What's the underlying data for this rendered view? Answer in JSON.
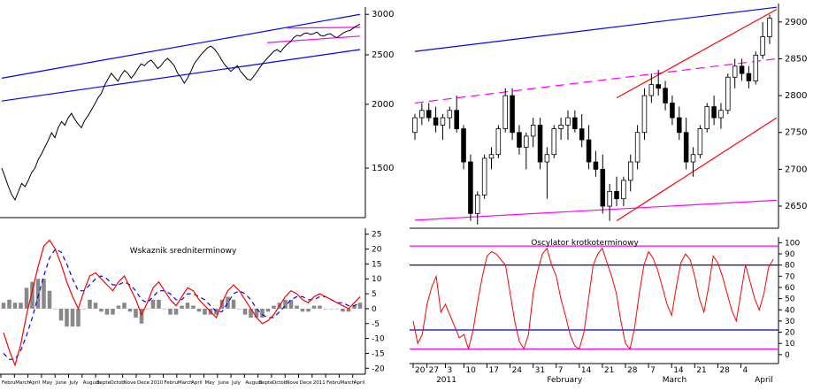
{
  "chart_data": [
    {
      "type": "line",
      "panel": "long-term-price",
      "title": "",
      "ylim": [
        1200,
        3100
      ],
      "log_scale": true,
      "y_ticks": [
        {
          "value": 3000,
          "label": "3000"
        },
        {
          "value": 2500,
          "label": "2500"
        },
        {
          "value": 2000,
          "label": "2000"
        },
        {
          "value": 1500,
          "label": "1500"
        }
      ],
      "series": [
        {
          "values": [
            1500,
            1440,
            1380,
            1330,
            1300,
            1350,
            1400,
            1380,
            1420,
            1470,
            1500,
            1560,
            1600,
            1650,
            1700,
            1760,
            1720,
            1800,
            1850,
            1820,
            1880,
            1920,
            1870,
            1830,
            1800,
            1860,
            1900,
            1950,
            2000,
            2060,
            2100,
            2180,
            2240,
            2300,
            2260,
            2220,
            2280,
            2330,
            2300,
            2250,
            2290,
            2350,
            2400,
            2380,
            2420,
            2440,
            2400,
            2350,
            2380,
            2430,
            2460,
            2420,
            2380,
            2300,
            2260,
            2200,
            2250,
            2320,
            2400,
            2450,
            2500,
            2540,
            2580,
            2600,
            2570,
            2520,
            2460,
            2400,
            2360,
            2320,
            2350,
            2380,
            2320,
            2280,
            2240,
            2230,
            2270,
            2320,
            2370,
            2420,
            2460,
            2500,
            2540,
            2560,
            2530,
            2580,
            2620,
            2650,
            2700,
            2730,
            2720,
            2750,
            2760,
            2740,
            2750,
            2770,
            2730,
            2720,
            2740,
            2750,
            2720,
            2700,
            2730,
            2760,
            2780,
            2790,
            2820,
            2850,
            2870
          ]
        }
      ],
      "trendlines": [
        {
          "color": "#0000ff",
          "points": [
            [
              0,
              2250
            ],
            [
              108,
              3000
            ]
          ]
        },
        {
          "color": "#0000ff",
          "points": [
            [
              0,
              2030
            ],
            [
              108,
              2560
            ]
          ]
        },
        {
          "color": "#ff00ff",
          "points": [
            [
              80,
              2640
            ],
            [
              108,
              2720
            ]
          ]
        },
        {
          "color": "#ff00ff",
          "points": [
            [
              86,
              2820
            ],
            [
              108,
              2830
            ]
          ]
        }
      ],
      "x_labels": []
    },
    {
      "type": "line",
      "panel": "medium-term-oscillator",
      "title": "Wskaznik sredniterminowy",
      "ylim": [
        -22,
        27
      ],
      "y_ticks": [
        25,
        20,
        15,
        10,
        5,
        0,
        -5,
        -10,
        -15,
        -20
      ],
      "series": [
        {
          "color": "#ff0000",
          "values": [
            -8,
            -14,
            -19,
            -12,
            -2,
            6,
            14,
            21,
            23,
            20,
            15,
            9,
            4,
            0,
            6,
            11,
            12,
            10,
            8,
            6,
            9,
            11,
            7,
            3,
            -2,
            2,
            7,
            9,
            6,
            3,
            1,
            4,
            7,
            6,
            3,
            1,
            -1,
            -3,
            2,
            6,
            8,
            6,
            3,
            0,
            -3,
            -5,
            -4,
            -2,
            1,
            4,
            6,
            5,
            3,
            2,
            4,
            5,
            4,
            3,
            2,
            1,
            0,
            2,
            4
          ]
        },
        {
          "color": "#0000ff",
          "dash": "5,4",
          "values": [
            -15,
            -17,
            -17,
            -14,
            -9,
            -3,
            4,
            11,
            17,
            20,
            19,
            15,
            10,
            6,
            6,
            8,
            10,
            11,
            10,
            8,
            8,
            9,
            8,
            6,
            3,
            2,
            4,
            6,
            6,
            5,
            3,
            3,
            5,
            5,
            4,
            3,
            1,
            -1,
            -1,
            2,
            5,
            6,
            5,
            3,
            0,
            -2,
            -3,
            -3,
            -1,
            1,
            3,
            4,
            4,
            3,
            3,
            4,
            4,
            3,
            2,
            2,
            1,
            1,
            2
          ]
        },
        {
          "color": "#888888",
          "type": "histogram",
          "values": [
            2,
            3,
            2,
            2,
            7,
            9,
            10,
            10,
            6,
            0,
            -4,
            -6,
            -6,
            -6,
            0,
            3,
            2,
            -1,
            -2,
            -2,
            1,
            2,
            -1,
            -3,
            -5,
            0,
            3,
            3,
            0,
            -2,
            -2,
            1,
            2,
            1,
            -1,
            -2,
            -2,
            -2,
            3,
            4,
            3,
            0,
            -2,
            -3,
            -3,
            -3,
            -1,
            1,
            2,
            3,
            3,
            1,
            -1,
            -1,
            1,
            1,
            0,
            0,
            0,
            -1,
            -1,
            1,
            2
          ]
        }
      ],
      "x_labels": [
        "Febru",
        "March",
        "April",
        "May",
        "June",
        "July",
        "August",
        "Septe",
        "Octob",
        "Nove",
        "Dece",
        "2010",
        "Febru",
        "March",
        "April",
        "May",
        "June",
        "July",
        "August",
        "Septe",
        "Octob",
        "Nove",
        "Dece",
        "2011",
        "Febru",
        "March",
        "April"
      ]
    },
    {
      "type": "candlestick",
      "panel": "short-term-price",
      "title": "",
      "ylim": [
        2620,
        2925
      ],
      "y_ticks": [
        2900,
        2850,
        2800,
        2750,
        2700,
        2650
      ],
      "series": [
        {
          "values": [
            [
              2750,
              2775,
              2740,
              2770
            ],
            [
              2770,
              2790,
              2760,
              2780
            ],
            [
              2780,
              2790,
              2765,
              2770
            ],
            [
              2770,
              2785,
              2750,
              2760
            ],
            [
              2760,
              2775,
              2740,
              2770
            ],
            [
              2770,
              2785,
              2755,
              2780
            ],
            [
              2780,
              2800,
              2750,
              2755
            ],
            [
              2755,
              2760,
              2700,
              2710
            ],
            [
              2710,
              2720,
              2630,
              2640
            ],
            [
              2640,
              2670,
              2625,
              2665
            ],
            [
              2665,
              2720,
              2660,
              2715
            ],
            [
              2715,
              2730,
              2700,
              2720
            ],
            [
              2720,
              2760,
              2715,
              2755
            ],
            [
              2755,
              2810,
              2750,
              2800
            ],
            [
              2800,
              2810,
              2740,
              2750
            ],
            [
              2750,
              2760,
              2720,
              2730
            ],
            [
              2730,
              2750,
              2700,
              2745
            ],
            [
              2745,
              2770,
              2730,
              2760
            ],
            [
              2760,
              2770,
              2700,
              2710
            ],
            [
              2710,
              2730,
              2660,
              2720
            ],
            [
              2720,
              2760,
              2715,
              2755
            ],
            [
              2755,
              2770,
              2740,
              2760
            ],
            [
              2760,
              2780,
              2740,
              2770
            ],
            [
              2770,
              2780,
              2750,
              2755
            ],
            [
              2755,
              2775,
              2730,
              2740
            ],
            [
              2740,
              2760,
              2700,
              2710
            ],
            [
              2710,
              2725,
              2690,
              2700
            ],
            [
              2700,
              2720,
              2640,
              2650
            ],
            [
              2650,
              2680,
              2630,
              2670
            ],
            [
              2670,
              2690,
              2650,
              2660
            ],
            [
              2660,
              2690,
              2650,
              2685
            ],
            [
              2685,
              2720,
              2670,
              2710
            ],
            [
              2710,
              2760,
              2700,
              2750
            ],
            [
              2750,
              2810,
              2740,
              2800
            ],
            [
              2800,
              2830,
              2790,
              2815
            ],
            [
              2815,
              2835,
              2800,
              2810
            ],
            [
              2810,
              2820,
              2780,
              2790
            ],
            [
              2790,
              2800,
              2760,
              2770
            ],
            [
              2770,
              2785,
              2740,
              2750
            ],
            [
              2750,
              2770,
              2700,
              2710
            ],
            [
              2710,
              2730,
              2690,
              2720
            ],
            [
              2720,
              2760,
              2715,
              2755
            ],
            [
              2755,
              2790,
              2750,
              2785
            ],
            [
              2785,
              2800,
              2760,
              2770
            ],
            [
              2770,
              2790,
              2755,
              2780
            ],
            [
              2780,
              2830,
              2775,
              2825
            ],
            [
              2825,
              2850,
              2810,
              2840
            ],
            [
              2840,
              2850,
              2820,
              2830
            ],
            [
              2830,
              2840,
              2810,
              2820
            ],
            [
              2820,
              2860,
              2815,
              2855
            ],
            [
              2855,
              2900,
              2850,
              2880
            ],
            [
              2880,
              2910,
              2870,
              2905
            ]
          ]
        }
      ],
      "trendlines": [
        {
          "color": "#0000ff",
          "points": [
            [
              0,
              2860
            ],
            [
              52,
              2920
            ]
          ]
        },
        {
          "color": "#ff00ff",
          "dash": "10,6",
          "points": [
            [
              0,
              2790
            ],
            [
              52,
              2850
            ]
          ]
        },
        {
          "color": "#ff00ff",
          "points": [
            [
              0,
              2631
            ],
            [
              52,
              2658
            ]
          ]
        },
        {
          "color": "#ff0000",
          "points": [
            [
              29,
              2797
            ],
            [
              52,
              2917
            ]
          ]
        },
        {
          "color": "#ff0000",
          "points": [
            [
              29,
              2630
            ],
            [
              52,
              2770
            ]
          ]
        }
      ]
    },
    {
      "type": "line",
      "panel": "short-term-oscillator",
      "title": "Oscylator krotkoterminowy",
      "ylim": [
        -8,
        105
      ],
      "y_ticks": [
        100,
        90,
        80,
        70,
        60,
        50,
        40,
        30,
        20,
        10,
        0
      ],
      "hlines": [
        {
          "value": 97,
          "color": "#ff00ff"
        },
        {
          "value": 80,
          "color": "#0000cc"
        },
        {
          "value": 22,
          "color": "#0000cc"
        },
        {
          "value": 5,
          "color": "#ff00ff"
        }
      ],
      "series": [
        {
          "color": "#ff0000",
          "values": [
            30,
            10,
            18,
            45,
            60,
            70,
            38,
            45,
            35,
            25,
            15,
            18,
            5,
            22,
            48,
            70,
            88,
            92,
            90,
            85,
            80,
            55,
            30,
            12,
            5,
            18,
            55,
            75,
            90,
            95,
            80,
            70,
            50,
            35,
            18,
            8,
            5,
            20,
            50,
            80,
            90,
            95,
            82,
            70,
            55,
            30,
            10,
            5,
            25,
            55,
            80,
            92,
            86,
            75,
            60,
            45,
            35,
            60,
            82,
            90,
            85,
            70,
            50,
            38,
            60,
            88,
            82,
            70,
            55,
            40,
            30,
            55,
            80,
            65,
            50,
            40,
            55,
            78,
            85
          ]
        }
      ],
      "x_labels": [
        {
          "label": "20",
          "i": 0
        },
        {
          "label": "27",
          "i": 3
        },
        {
          "label": "3",
          "i": 7
        },
        {
          "label": "10",
          "i": 11
        },
        {
          "label": "17",
          "i": 16
        },
        {
          "label": "24",
          "i": 21
        },
        {
          "label": "31",
          "i": 26
        },
        {
          "label": "7",
          "i": 31
        },
        {
          "label": "14",
          "i": 36
        },
        {
          "label": "21",
          "i": 41
        },
        {
          "label": "28",
          "i": 46
        },
        {
          "label": "7",
          "i": 51
        },
        {
          "label": "14",
          "i": 56
        },
        {
          "label": "21",
          "i": 61
        },
        {
          "label": "28",
          "i": 66
        },
        {
          "label": "4",
          "i": 71
        }
      ],
      "x_month_labels": [
        {
          "label": "2011",
          "i": 5
        },
        {
          "label": "February",
          "i": 29
        },
        {
          "label": "March",
          "i": 54
        },
        {
          "label": "April",
          "i": 74
        }
      ]
    }
  ]
}
